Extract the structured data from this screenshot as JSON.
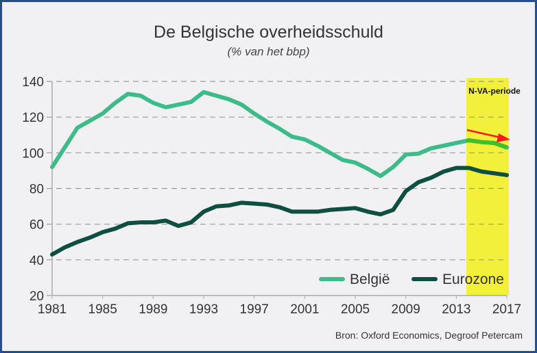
{
  "chart_data": {
    "type": "line",
    "title": "De Belgische overheidsschuld",
    "subtitle": "(% van het bbp)",
    "source": "Bron: Oxford Economics, Degroof Petercam",
    "x": [
      1981,
      1982,
      1983,
      1984,
      1985,
      1986,
      1987,
      1988,
      1989,
      1990,
      1991,
      1992,
      1993,
      1994,
      1995,
      1996,
      1997,
      1998,
      1999,
      2000,
      2001,
      2002,
      2003,
      2004,
      2005,
      2006,
      2007,
      2008,
      2009,
      2010,
      2011,
      2012,
      2013,
      2014,
      2015,
      2016,
      2017
    ],
    "series": [
      {
        "name": "België",
        "color": "#3dbb8a",
        "values": [
          92,
          103,
          114,
          118,
          122,
          128,
          133,
          132,
          128,
          125.5,
          127,
          128.5,
          134,
          132,
          130,
          127,
          122,
          117.5,
          113.5,
          109,
          107.5,
          104,
          100,
          96,
          94.5,
          91,
          87,
          92,
          99,
          99.5,
          102.5,
          104,
          105.5,
          107,
          106,
          105.5,
          103
        ]
      },
      {
        "name": "Eurozone",
        "color": "#0f4f42",
        "values": [
          43,
          47,
          50,
          52.5,
          55.5,
          57.5,
          60.5,
          61,
          61,
          62,
          59,
          61,
          67,
          70,
          70.5,
          72,
          71.5,
          71,
          69.5,
          67,
          67,
          67,
          68,
          68.5,
          69,
          67,
          65.5,
          68,
          78.5,
          83.5,
          86,
          89.5,
          91.5,
          91.5,
          89.5,
          88.5,
          87.5
        ]
      }
    ],
    "x_ticks": [
      1981,
      1985,
      1989,
      1993,
      1997,
      2001,
      2005,
      2009,
      2013,
      2017
    ],
    "y_ticks": [
      20,
      40,
      60,
      80,
      100,
      120,
      140
    ],
    "xlim": [
      1981,
      2017
    ],
    "ylim": [
      20,
      140
    ],
    "grid": "horizontal dashed",
    "legend": "bottom-right",
    "highlight": {
      "label": "N-VA-periode",
      "from": 2013.8,
      "to": 2017,
      "color": "#f2f03a",
      "belgium_color_in_period": "#3fbf2a"
    },
    "arrow": {
      "color": "#ff1a1a",
      "direction": "down-right"
    }
  }
}
